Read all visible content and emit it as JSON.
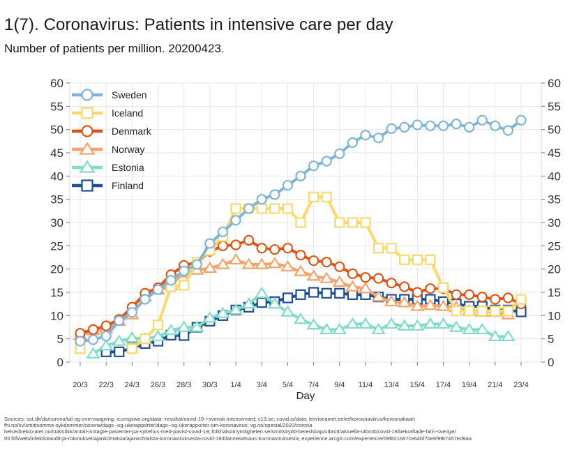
{
  "title": "1(7). Coronavirus: Patients in intensive care per day",
  "subtitle": "Number of patients per million. 20200423.",
  "sources": [
    "Sources: sst.dk/da/corona/tal-og-overvaagning; icuregswe.org/data--resultat/covid-19-i-svensk-intensivvard; c19.se; covid.is/data;  terviseamet.ee/et/koroonaviirus/koroonakaart",
    "fhi.no/sv/smittsomme-sykdommer/corona/dags--og-ukerapporter/dags--og-ukerapporter-om-koronavirus; vg.no/spesial/2020/corona",
    "helsedirektoratet.no/statistikk/antall-innlagte-pasienter-pa-sykehus-med-pavist-covid-19; folkhalsomyndigheten.se/smittskydd-beredskap/utbrott/aktuella-utbrott/covid-19/bekraftade-fall-i-sverige/",
    "thl.fi/fi/web/infektiotaudit-ja-rokotukset/ajankohtaista/ajankohtaista-koronaviruksesta-covid-19/tilannekatsaus-koronaviruksesta; experience.arcgis.com/experience/09f821667ce64bf7be6f9f87457ed9aa"
  ],
  "chart_data": {
    "type": "line",
    "title": "1(7). Coronavirus: Patients in intensive care per day",
    "subtitle": "Number of patients per million. 20200423.",
    "xlabel": "Day",
    "ylabel": "",
    "ylim": [
      0,
      60
    ],
    "yticks": [
      0,
      5,
      10,
      15,
      20,
      25,
      30,
      35,
      40,
      45,
      50,
      55,
      60
    ],
    "xticks": [
      "20/3",
      "22/3",
      "24/3",
      "26/3",
      "28/3",
      "30/3",
      "1/4",
      "3/4",
      "5/4",
      "7/4",
      "9/4",
      "11/4",
      "13/4",
      "15/4",
      "17/4",
      "19/4",
      "21/4",
      "23/4"
    ],
    "x_start_day": 20,
    "x_day_count": 35,
    "legend_position": "top-left",
    "grid": true,
    "series": [
      {
        "name": "Sweden",
        "color": "#7db4d8",
        "marker": "circle",
        "values": [
          4.5,
          4.8,
          5.6,
          8.9,
          10.7,
          13.5,
          15.6,
          17.6,
          19.6,
          21.0,
          25.5,
          28.0,
          30.5,
          33.0,
          35.0,
          36.0,
          38.0,
          40.0,
          42.2,
          43.2,
          44.8,
          47.2,
          48.8,
          48.2,
          50.2,
          50.5,
          51.0,
          50.8,
          50.8,
          51.2,
          50.5,
          52.0,
          50.8,
          49.8,
          52.0
        ]
      },
      {
        "name": "Iceland",
        "color": "#fad96a",
        "marker": "square",
        "values": [
          2.9,
          null,
          null,
          null,
          2.9,
          5.0,
          8.0,
          16.2,
          16.5,
          21.5,
          24.0,
          27.0,
          33.0,
          33.0,
          33.0,
          33.0,
          33.0,
          30.0,
          35.5,
          35.5,
          30.0,
          30.0,
          30.0,
          24.5,
          24.5,
          22.0,
          22.0,
          22.0,
          16.0,
          11.0,
          11.0,
          11.0,
          11.0,
          11.0,
          13.5
        ]
      },
      {
        "name": "Denmark",
        "color": "#e15313",
        "marker": "circle",
        "values": [
          6.2,
          7.0,
          7.8,
          9.2,
          11.8,
          14.8,
          16.0,
          18.8,
          20.8,
          21.4,
          23.8,
          25.0,
          25.2,
          26.2,
          24.5,
          24.2,
          24.5,
          23.0,
          21.8,
          21.5,
          20.5,
          19.0,
          18.2,
          18.0,
          17.0,
          16.2,
          15.0,
          15.8,
          15.8,
          14.5,
          14.5,
          14.0,
          13.5,
          13.8,
          12.5
        ]
      },
      {
        "name": "Norway",
        "color": "#f4a46b",
        "marker": "triangle",
        "values": [
          5.8,
          6.8,
          7.2,
          8.8,
          10.2,
          14.0,
          15.5,
          16.5,
          19.2,
          19.8,
          20.2,
          21.0,
          22.0,
          21.0,
          21.0,
          21.2,
          20.5,
          19.5,
          18.5,
          18.0,
          17.2,
          16.2,
          15.8,
          14.0,
          13.0,
          12.8,
          12.0,
          12.2,
          12.0,
          11.8,
          11.0,
          10.8,
          10.8,
          10.2,
          null
        ]
      },
      {
        "name": "Estonia",
        "color": "#81dcc6",
        "marker": "triangle",
        "values": [
          null,
          1.8,
          3.5,
          4.5,
          5.2,
          5.0,
          5.5,
          6.8,
          7.5,
          7.5,
          9.5,
          10.5,
          11.2,
          12.5,
          14.8,
          12.5,
          10.8,
          9.2,
          8.0,
          7.0,
          7.0,
          8.2,
          8.2,
          7.0,
          8.2,
          7.8,
          7.8,
          8.2,
          8.2,
          7.5,
          7.0,
          7.0,
          5.5,
          5.5,
          null
        ]
      },
      {
        "name": "Finland",
        "color": "#1c4f98",
        "marker": "square",
        "values": [
          null,
          null,
          2.2,
          2.2,
          3.0,
          4.0,
          4.5,
          5.8,
          5.7,
          7.5,
          8.8,
          10.0,
          11.2,
          11.8,
          12.8,
          13.0,
          13.8,
          14.5,
          15.0,
          14.8,
          14.8,
          14.5,
          14.5,
          14.0,
          13.5,
          13.5,
          13.5,
          13.5,
          13.0,
          12.5,
          12.0,
          12.0,
          11.2,
          11.2,
          10.8
        ]
      }
    ]
  }
}
